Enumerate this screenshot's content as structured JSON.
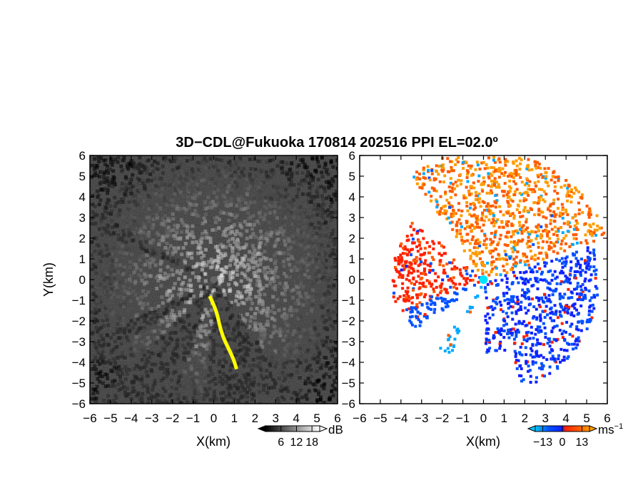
{
  "title": "3D−CDL@Fukuoka 170814 202516 PPI EL=02.0º",
  "chart_data": [
    {
      "type": "heatmap",
      "panel": "reflectivity",
      "xlabel": "X(km)",
      "ylabel": "Y(km)",
      "xlim": [
        -6,
        6
      ],
      "ylim": [
        -6,
        6
      ],
      "x_ticks": [
        "−6",
        "−5",
        "−4",
        "−3",
        "−2",
        "−1",
        "0",
        "1",
        "2",
        "3",
        "4",
        "5",
        "6"
      ],
      "y_ticks": [
        "−6",
        "−5",
        "−4",
        "−3",
        "−2",
        "−1",
        "0",
        "1",
        "2",
        "3",
        "4",
        "5",
        "6"
      ],
      "colormap": "grayscale",
      "colorbar": {
        "unit": "dB",
        "tick_labels": [
          "6",
          "12",
          "18"
        ],
        "ticks": [
          6,
          12,
          18
        ],
        "range": [
          0,
          21
        ]
      },
      "beam_blocked_sectors_deg": [
        [
          150,
          158
        ],
        [
          205,
          214
        ],
        [
          225,
          250
        ],
        [
          265,
          305
        ]
      ],
      "highlight_color": "#ffff00"
    },
    {
      "type": "heatmap",
      "panel": "doppler-velocity",
      "xlabel": "X(km)",
      "xlim": [
        -6,
        6
      ],
      "ylim": [
        -6,
        6
      ],
      "x_ticks": [
        "−6",
        "−5",
        "−4",
        "−3",
        "−2",
        "−1",
        "0",
        "1",
        "2",
        "3",
        "4",
        "5",
        "6"
      ],
      "y_ticks": [
        "−6",
        "−5",
        "−4",
        "−3",
        "−2",
        "−1",
        "0",
        "1",
        "2",
        "3",
        "4",
        "5",
        "6"
      ],
      "colormap": "blue-cyan-red-orange",
      "colorbar": {
        "unit": "ms",
        "unit_exp": "−1",
        "tick_labels": [
          "−13",
          "0",
          "13"
        ],
        "ticks": [
          -13,
          0,
          13
        ],
        "range": [
          -18,
          18
        ]
      },
      "radar_marker_color": "#00e5ff"
    }
  ]
}
